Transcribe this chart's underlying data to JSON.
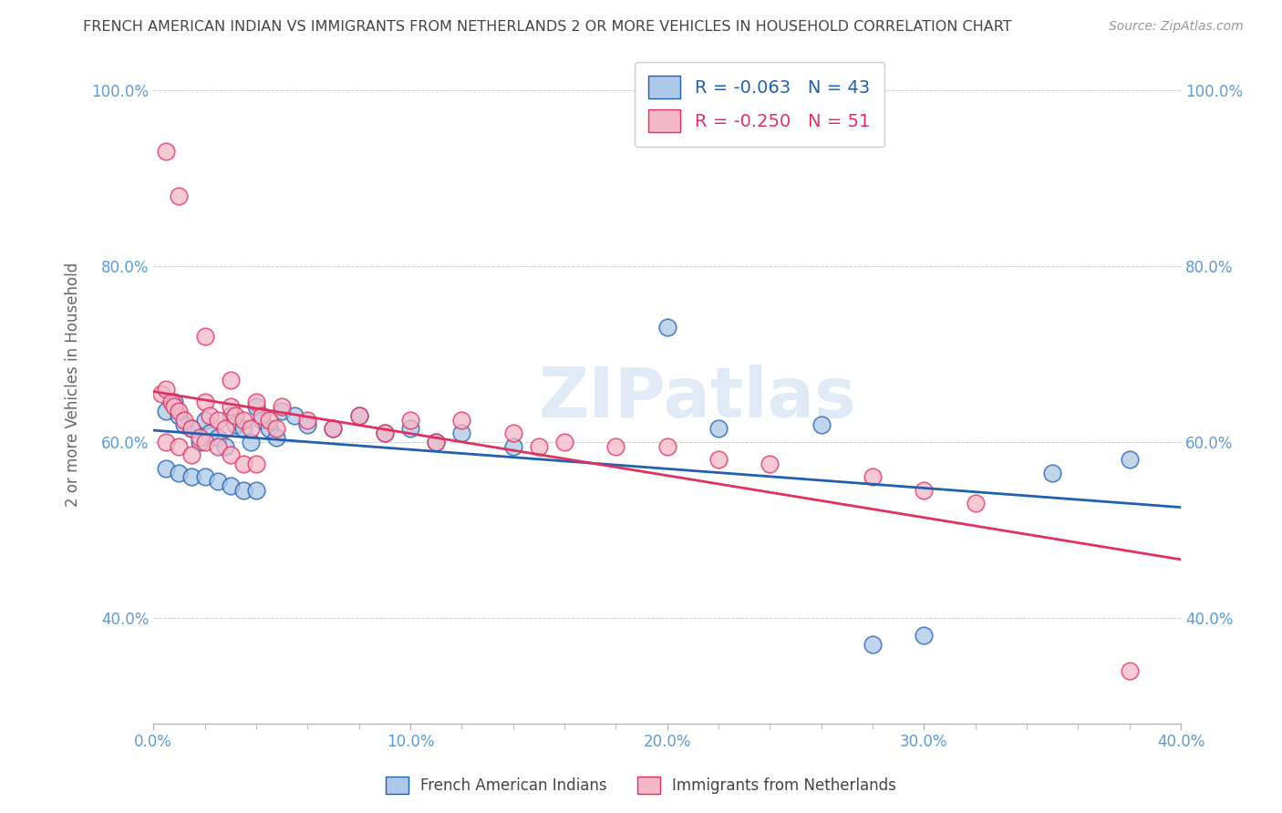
{
  "title": "FRENCH AMERICAN INDIAN VS IMMIGRANTS FROM NETHERLANDS 2 OR MORE VEHICLES IN HOUSEHOLD CORRELATION CHART",
  "source": "Source: ZipAtlas.com",
  "ylabel": "2 or more Vehicles in Household",
  "xlabel": "",
  "legend_label1": "French American Indians",
  "legend_label2": "Immigrants from Netherlands",
  "R1": -0.063,
  "N1": 43,
  "R2": -0.25,
  "N2": 51,
  "color1": "#adc8e8",
  "color2": "#f5b8c8",
  "line_color1": "#2060b0",
  "line_color2": "#e03060",
  "xlim": [
    0.0,
    0.4
  ],
  "ylim": [
    0.28,
    1.05
  ],
  "xticklabels": [
    "0.0%",
    "",
    "",
    "",
    "10.0%",
    "",
    "",
    "",
    "",
    "20.0%",
    "",
    "",
    "",
    "",
    "30.0%",
    "",
    "",
    "",
    "",
    "40.0%"
  ],
  "xticks": [
    0.0,
    0.02,
    0.04,
    0.06,
    0.1,
    0.12,
    0.14,
    0.16,
    0.18,
    0.2,
    0.22,
    0.24,
    0.26,
    0.28,
    0.3,
    0.32,
    0.34,
    0.36,
    0.38,
    0.4
  ],
  "xticklabels_main": [
    "0.0%",
    "10.0%",
    "20.0%",
    "30.0%",
    "40.0%"
  ],
  "xticks_main": [
    0.0,
    0.1,
    0.2,
    0.3,
    0.4
  ],
  "yticklabels": [
    "40.0%",
    "60.0%",
    "80.0%",
    "100.0%"
  ],
  "yticks": [
    0.4,
    0.6,
    0.8,
    1.0
  ],
  "blue_x": [
    0.005,
    0.008,
    0.01,
    0.012,
    0.015,
    0.018,
    0.02,
    0.022,
    0.025,
    0.028,
    0.03,
    0.032,
    0.035,
    0.038,
    0.04,
    0.042,
    0.045,
    0.048,
    0.005,
    0.01,
    0.015,
    0.02,
    0.025,
    0.03,
    0.035,
    0.04,
    0.05,
    0.055,
    0.06,
    0.07,
    0.08,
    0.09,
    0.1,
    0.11,
    0.12,
    0.14,
    0.2,
    0.22,
    0.26,
    0.28,
    0.3,
    0.35,
    0.38
  ],
  "blue_y": [
    0.635,
    0.645,
    0.63,
    0.62,
    0.615,
    0.6,
    0.625,
    0.61,
    0.605,
    0.595,
    0.63,
    0.62,
    0.615,
    0.6,
    0.64,
    0.625,
    0.615,
    0.605,
    0.57,
    0.565,
    0.56,
    0.56,
    0.555,
    0.55,
    0.545,
    0.545,
    0.635,
    0.63,
    0.62,
    0.615,
    0.63,
    0.61,
    0.615,
    0.6,
    0.61,
    0.595,
    0.73,
    0.615,
    0.62,
    0.37,
    0.38,
    0.565,
    0.58
  ],
  "pink_x": [
    0.003,
    0.005,
    0.007,
    0.008,
    0.01,
    0.012,
    0.015,
    0.018,
    0.02,
    0.022,
    0.025,
    0.028,
    0.03,
    0.032,
    0.035,
    0.038,
    0.04,
    0.042,
    0.045,
    0.048,
    0.005,
    0.01,
    0.015,
    0.02,
    0.025,
    0.03,
    0.035,
    0.04,
    0.05,
    0.06,
    0.07,
    0.08,
    0.09,
    0.1,
    0.11,
    0.12,
    0.14,
    0.15,
    0.16,
    0.18,
    0.2,
    0.22,
    0.24,
    0.28,
    0.3,
    0.32,
    0.005,
    0.01,
    0.02,
    0.03,
    0.38
  ],
  "pink_y": [
    0.655,
    0.66,
    0.645,
    0.64,
    0.635,
    0.625,
    0.615,
    0.605,
    0.645,
    0.63,
    0.625,
    0.615,
    0.64,
    0.63,
    0.625,
    0.615,
    0.645,
    0.63,
    0.625,
    0.615,
    0.6,
    0.595,
    0.585,
    0.6,
    0.595,
    0.585,
    0.575,
    0.575,
    0.64,
    0.625,
    0.615,
    0.63,
    0.61,
    0.625,
    0.6,
    0.625,
    0.61,
    0.595,
    0.6,
    0.595,
    0.595,
    0.58,
    0.575,
    0.56,
    0.545,
    0.53,
    0.93,
    0.88,
    0.72,
    0.67,
    0.34
  ],
  "watermark": "ZIPatlas",
  "background_color": "#ffffff",
  "grid_color": "#cccccc",
  "title_color": "#444444",
  "tick_color": "#5b9bd5",
  "axis_label_color": "#666666",
  "figsize": [
    14.06,
    8.92
  ],
  "dpi": 100
}
